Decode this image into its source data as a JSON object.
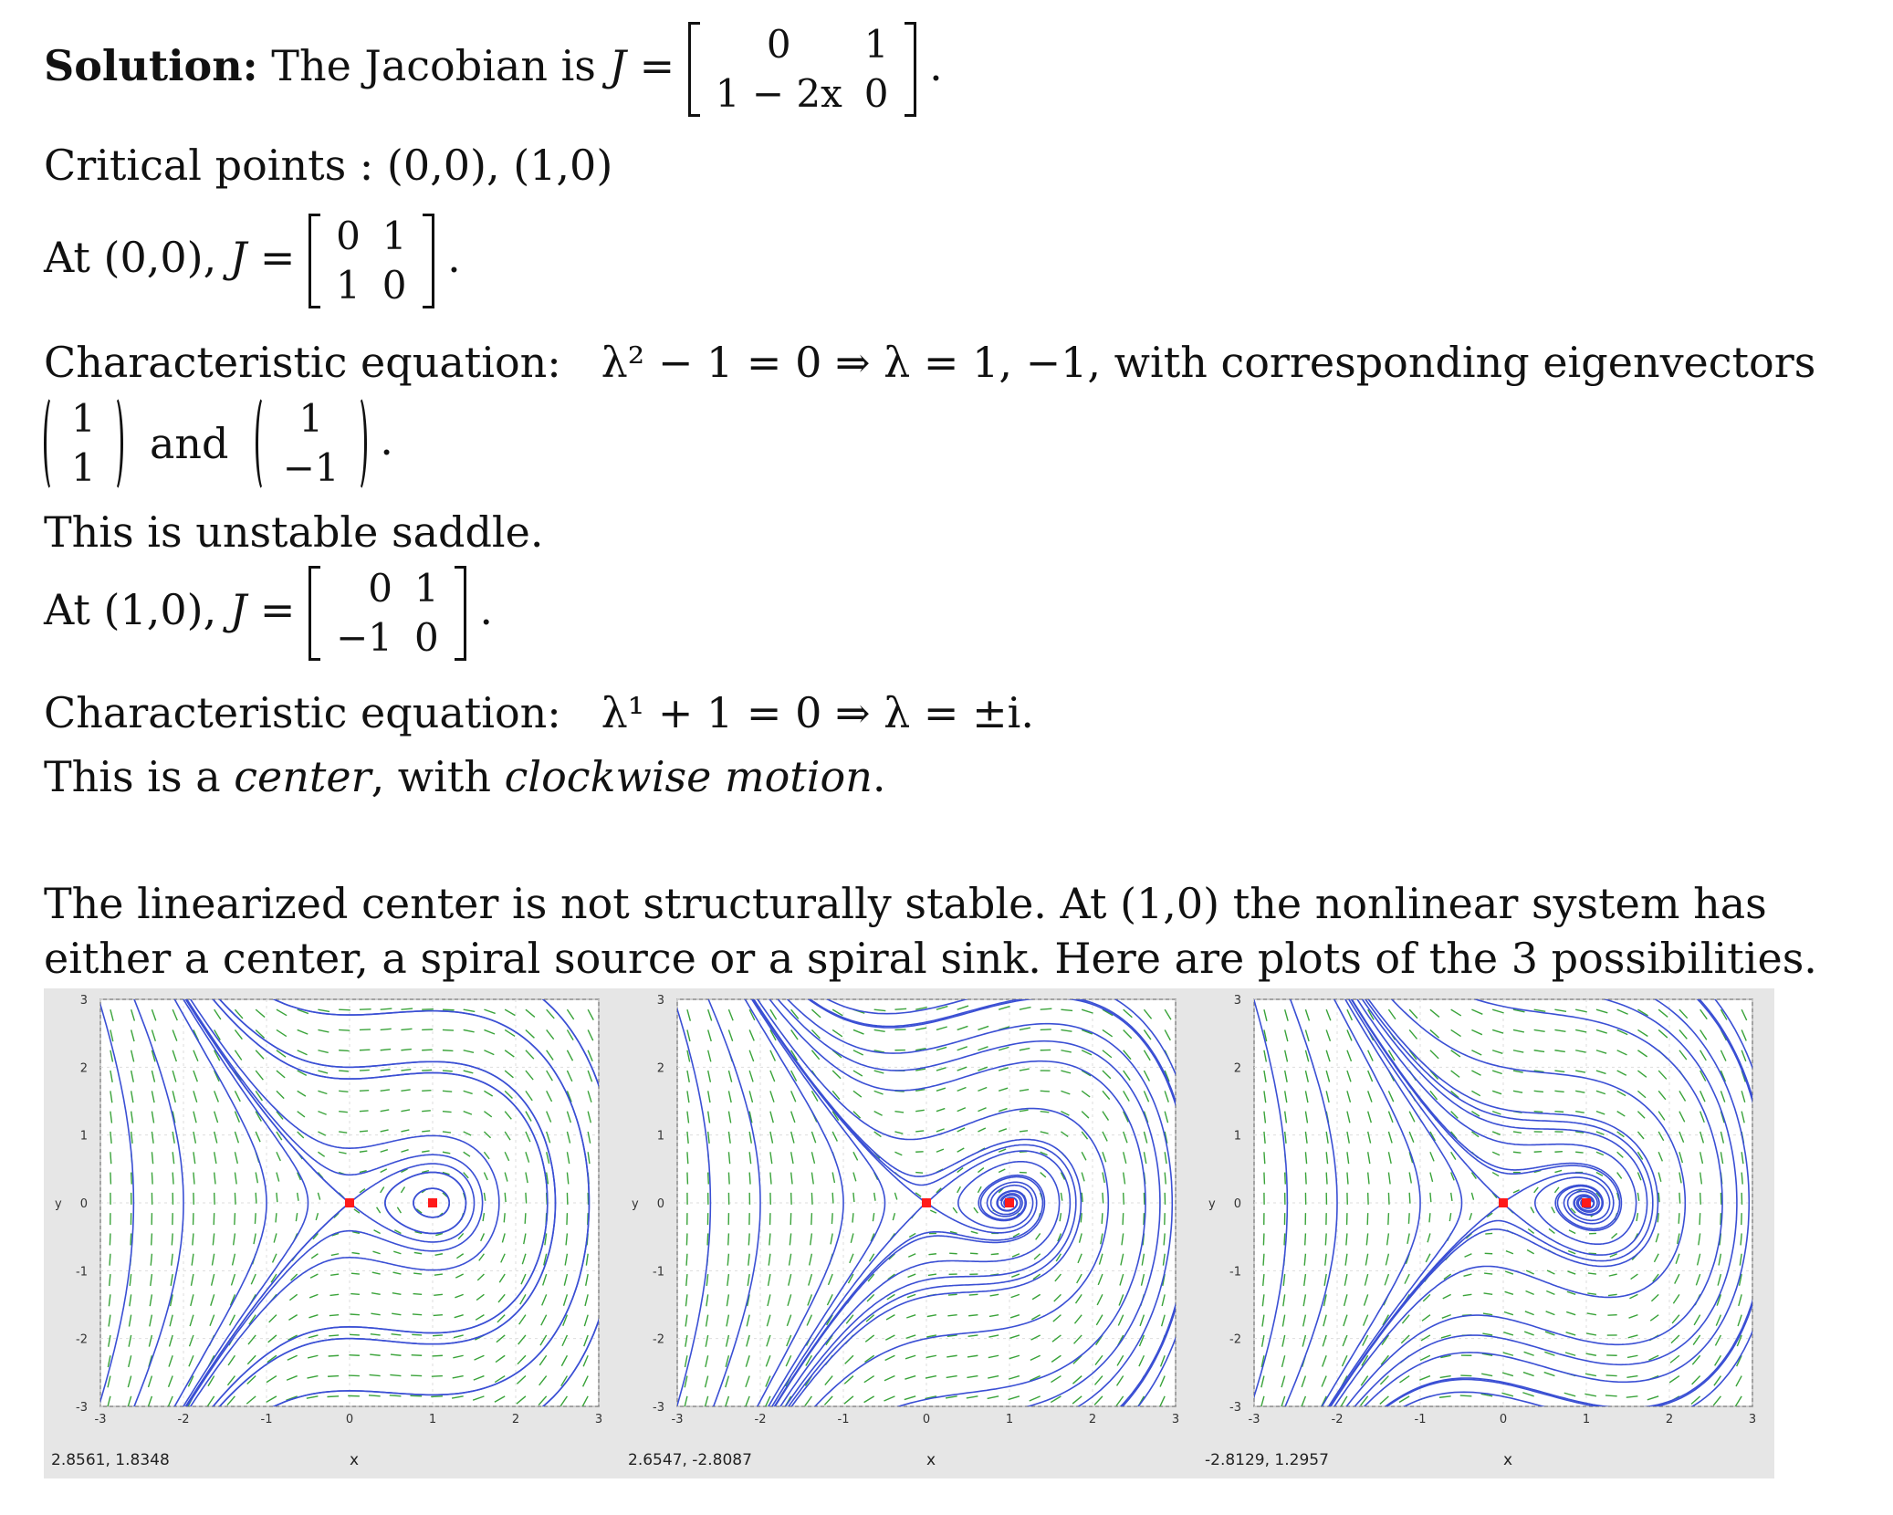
{
  "text": {
    "solution_bold": "Solution:",
    "jacobian_intro": "The Jacobian is",
    "J_eq": "J =",
    "J_matrix": [
      [
        "0",
        "1"
      ],
      [
        "1 − 2x",
        "0"
      ]
    ],
    "critical_points": "Critical points : (0,0), (1,0)",
    "at00": "At (0,0),",
    "J00": [
      [
        "0",
        "1"
      ],
      [
        "1",
        "0"
      ]
    ],
    "char1_label": "Characteristic equation:",
    "char1_expr": "λ² − 1 = 0  ⇒  λ = 1, −1, with corresponding eigenvectors",
    "eig1": [
      "1",
      "1"
    ],
    "and": "and",
    "eig2": [
      "1",
      "−1"
    ],
    "saddle": "This is unstable saddle.",
    "at10": "At (1,0),",
    "J10": [
      [
        "0",
        "1"
      ],
      [
        "−1",
        "0"
      ]
    ],
    "char2_label": "Characteristic equation:",
    "char2_expr": "λ¹ + 1 = 0 ⇒ λ = ±i.",
    "center_pre": "This is a",
    "center_word": "center",
    "center_mid": ", with",
    "center_motion": "clockwise motion",
    "center_end": ".",
    "dot": "."
  },
  "paragraph": "The linearized center is not structurally stable. At (1,0) the nonlinear system has either a center, a spiral source or a spiral sink. Here are plots of the 3 possibilities.",
  "plots": [
    {
      "coord_readout": "2.8561, 1.8348",
      "xlabel": "x",
      "ylabel": "y",
      "kind": "center",
      "xlim": [
        -3,
        3
      ],
      "ylim": [
        -3,
        3
      ],
      "x_ticks": [
        "-3",
        "-2",
        "-1",
        "0",
        "1",
        "2",
        "3"
      ],
      "y_ticks": [
        "3",
        "2",
        "1",
        "0",
        "-1",
        "-2",
        "-3"
      ],
      "critical_points": [
        [
          0,
          0
        ],
        [
          1,
          0
        ]
      ]
    },
    {
      "coord_readout": "2.6547, -2.8087",
      "xlabel": "x",
      "ylabel": "y",
      "kind": "spiral",
      "xlim": [
        -3,
        3
      ],
      "ylim": [
        -3,
        3
      ],
      "x_ticks": [
        "-3",
        "-2",
        "-1",
        "0",
        "1",
        "2",
        "3"
      ],
      "y_ticks": [
        "3",
        "2",
        "1",
        "0",
        "-1",
        "-2",
        "-3"
      ],
      "critical_points": [
        [
          0,
          0
        ],
        [
          1,
          0
        ]
      ]
    },
    {
      "coord_readout": "-2.8129, 1.2957",
      "xlabel": "x",
      "ylabel": "y",
      "kind": "spiral",
      "xlim": [
        -3,
        3
      ],
      "ylim": [
        -3,
        3
      ],
      "x_ticks": [
        "-3",
        "-2",
        "-1",
        "0",
        "1",
        "2",
        "3"
      ],
      "y_ticks": [
        "3",
        "2",
        "1",
        "0",
        "-1",
        "-2",
        "-3"
      ],
      "critical_points": [
        [
          0,
          0
        ],
        [
          1,
          0
        ]
      ]
    }
  ],
  "colors": {
    "trajectory": "#3a4fd4",
    "arrow": "#3aa33a",
    "critical_point": "#ff1a1a",
    "panel_bg": "#e6e6e6"
  }
}
